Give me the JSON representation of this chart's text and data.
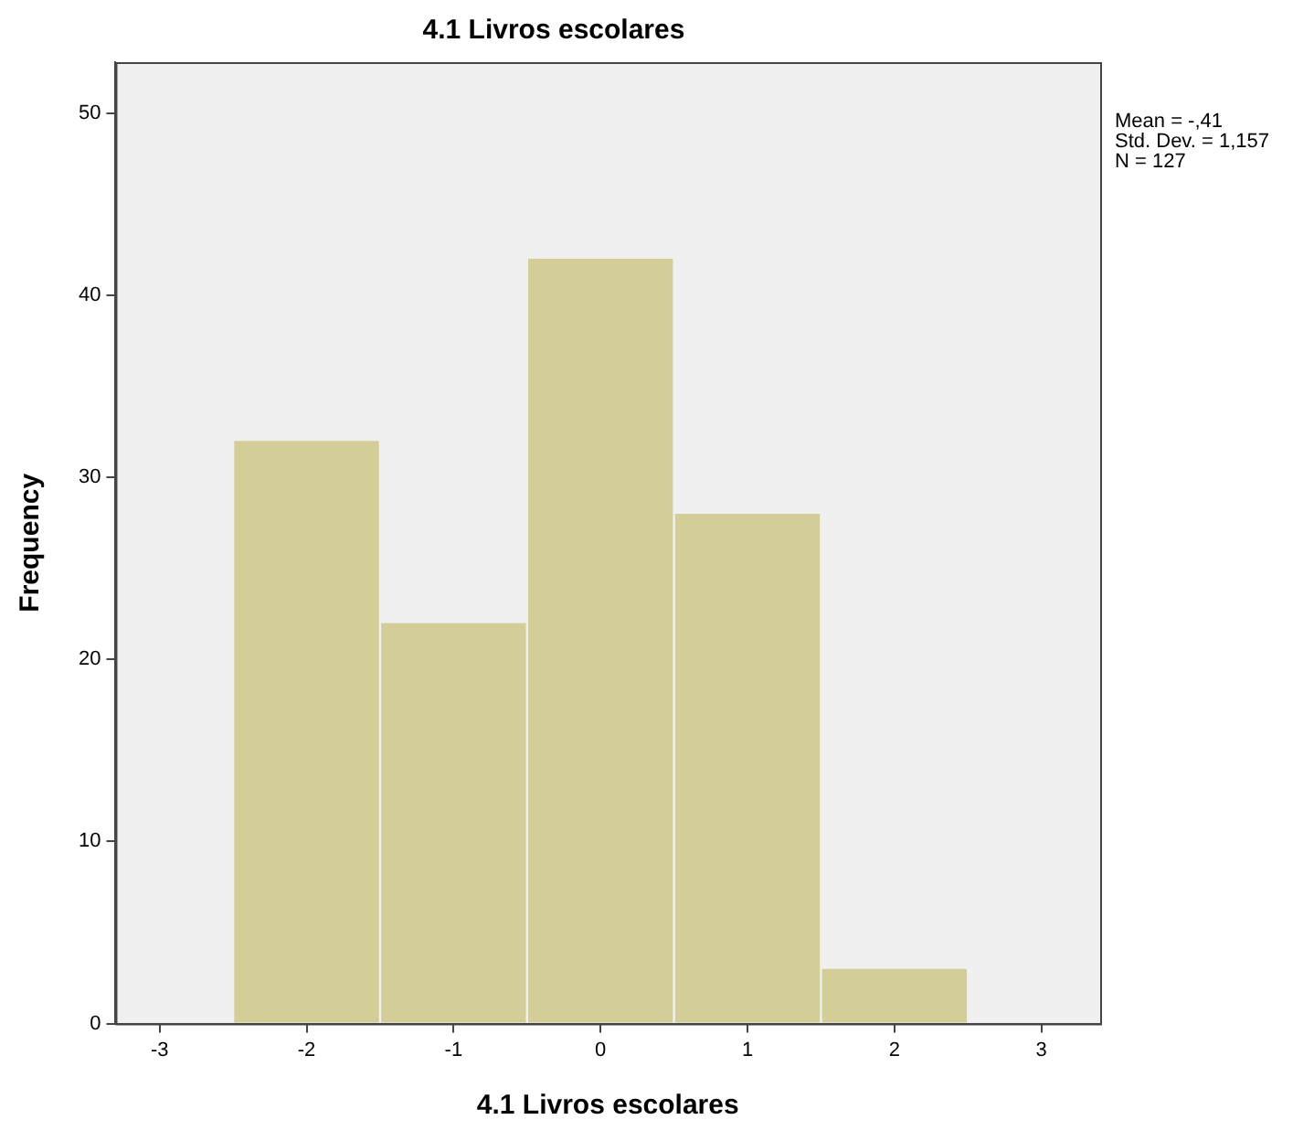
{
  "chart_data": {
    "type": "histogram",
    "title": "4.1 Livros escolares",
    "xlabel": "4.1 Livros escolares",
    "ylabel": "Frequency",
    "bins": [
      -2.5,
      -1.5,
      -0.5,
      0.5,
      1.5,
      2.5
    ],
    "values": [
      32,
      22,
      42,
      28,
      3
    ],
    "color": "#d3ce98",
    "xlim": [
      -3.3,
      3.4
    ],
    "xticks": [
      -3,
      -2,
      -1,
      0,
      1,
      2,
      3
    ],
    "ylim": [
      0,
      52.8
    ],
    "yticks": [
      0,
      10,
      20,
      30,
      40,
      50
    ],
    "grid": false,
    "legend": false,
    "annotations": [
      "Mean = -,41",
      "Std. Dev. = 1,157",
      "N = 127"
    ]
  }
}
